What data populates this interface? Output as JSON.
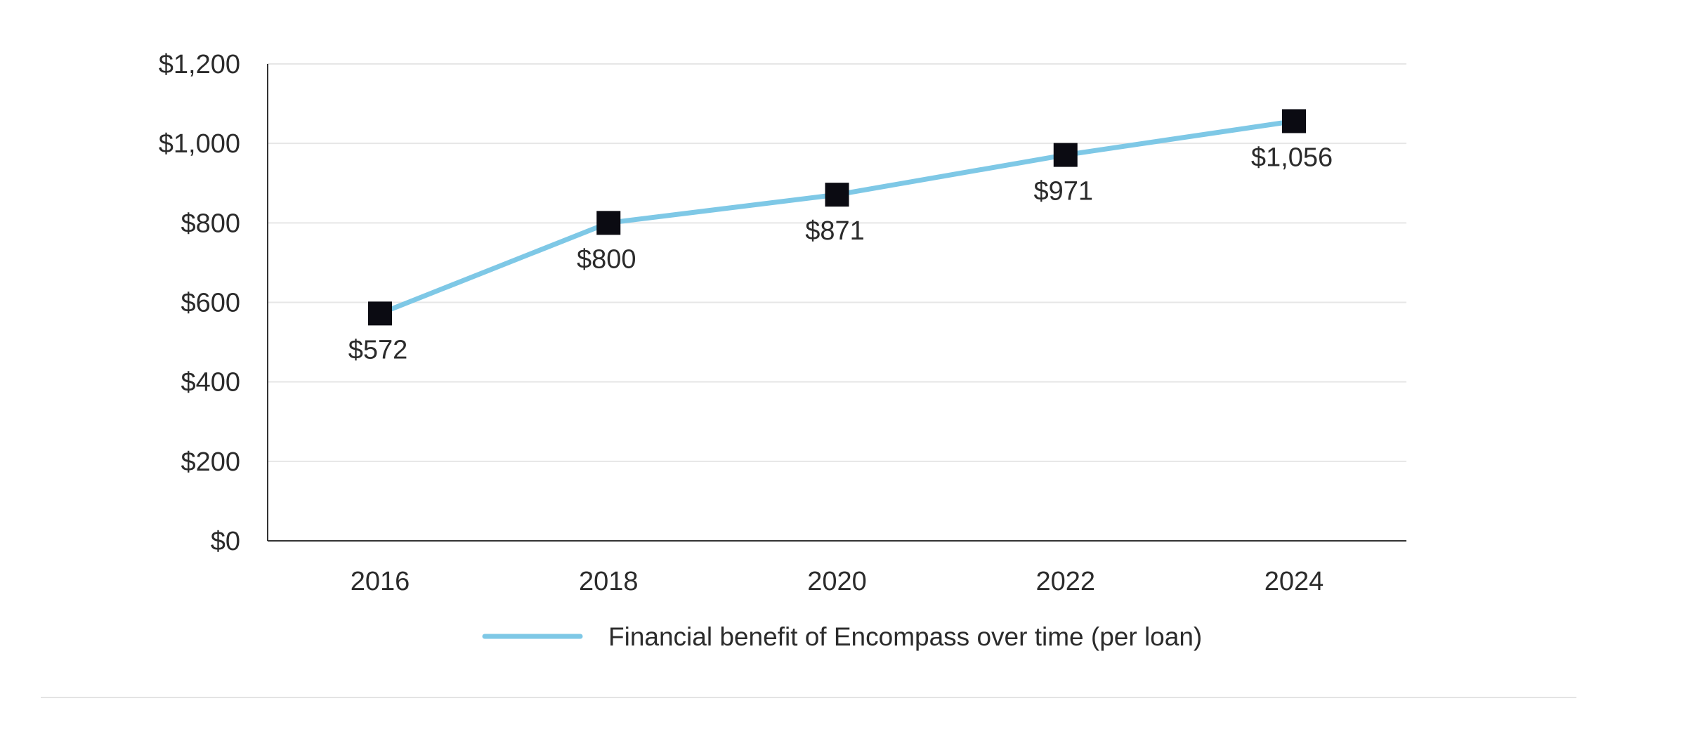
{
  "chart_data": {
    "type": "line",
    "title": "",
    "xlabel": "",
    "ylabel": "",
    "x": [
      "2016",
      "2018",
      "2020",
      "2022",
      "2024"
    ],
    "ylim": [
      0,
      1200
    ],
    "y_ticks": [
      0,
      200,
      400,
      600,
      800,
      1000,
      1200
    ],
    "y_tick_labels": [
      "$0",
      "$200",
      "$400",
      "$600",
      "$800",
      "$1,000",
      "$1,200"
    ],
    "grid": true,
    "legend_position": "bottom-center",
    "series": [
      {
        "name": "Financial benefit of Encompass over time (per loan)",
        "values": [
          572,
          800,
          871,
          971,
          1056
        ],
        "data_labels": [
          "$572",
          "$800",
          "$871",
          "$971",
          "$1,056"
        ],
        "line_color": "#7ec8e6",
        "marker": "square",
        "marker_color": "#0b0b12"
      }
    ]
  }
}
